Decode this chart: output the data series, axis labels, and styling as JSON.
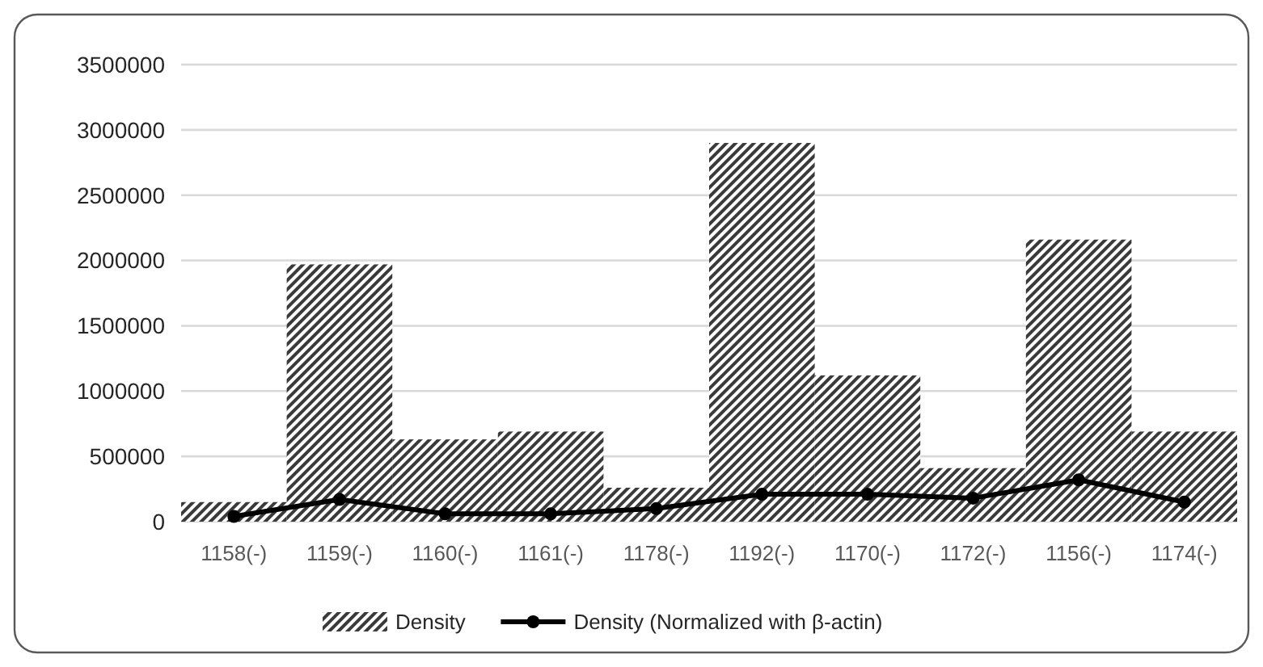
{
  "chart_data": {
    "type": "bar",
    "categories": [
      "1158(-)",
      "1159(-)",
      "1160(-)",
      "1161(-)",
      "1178(-)",
      "1192(-)",
      "1170(-)",
      "1172(-)",
      "1156(-)",
      "1174(-)"
    ],
    "series": [
      {
        "name": "Density",
        "color": "#3a3a3a",
        "values": [
          150000,
          1970000,
          630000,
          690000,
          260000,
          2900000,
          1120000,
          410000,
          2160000,
          690000
        ]
      },
      {
        "name": "Density (Normalized with β-actin)",
        "type": "line",
        "color": "#000000",
        "marker": "circle",
        "values": [
          40000,
          170000,
          60000,
          60000,
          100000,
          210000,
          210000,
          180000,
          320000,
          150000
        ]
      }
    ],
    "ylim": [
      0,
      3500000
    ],
    "yticks": [
      0,
      500000,
      1000000,
      1500000,
      2000000,
      2500000,
      3000000,
      3500000
    ],
    "grid": "y",
    "legend": "bottom"
  }
}
